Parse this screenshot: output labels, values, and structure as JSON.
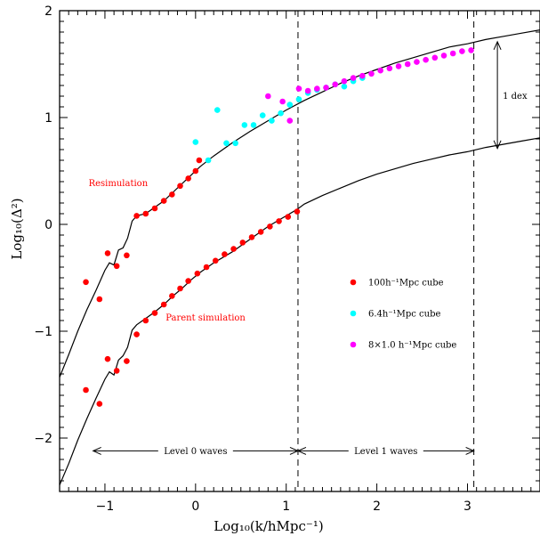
{
  "chart_data": {
    "type": "scatter",
    "title": "",
    "xlabel": "Log₁₀(k/hMpc⁻¹)",
    "ylabel": "Log₁₀(Δ²)",
    "xlim": [
      -1.5,
      3.8
    ],
    "ylim": [
      -2.5,
      2.0
    ],
    "xticks": [
      -1,
      0,
      1,
      2,
      3
    ],
    "xtick_labels": [
      "−1",
      "0",
      "1",
      "2",
      "3"
    ],
    "yticks": [
      -2,
      -1,
      0,
      1,
      2
    ],
    "ytick_labels": [
      "−2",
      "−1",
      "0",
      "1",
      "2"
    ],
    "grid": false,
    "legend": {
      "placement": "right-middle",
      "entries": [
        {
          "label": "100h⁻¹Mpc cube",
          "color": "#ff0000"
        },
        {
          "label": "6.4h⁻¹Mpc cube",
          "color": "#00ffff"
        },
        {
          "label": "8×1.0 h⁻¹Mpc cube",
          "color": "#ff00ff"
        }
      ]
    },
    "series": [
      {
        "name": "100h⁻¹Mpc cube",
        "color": "#ff0000",
        "points": [
          [
            -1.21,
            -0.54
          ],
          [
            -1.06,
            -0.7
          ],
          [
            -0.97,
            -0.27
          ],
          [
            -0.87,
            -0.39
          ],
          [
            -0.76,
            -0.29
          ],
          [
            -0.65,
            0.08
          ],
          [
            -0.55,
            0.1
          ],
          [
            -0.45,
            0.15
          ],
          [
            -0.35,
            0.22
          ],
          [
            -0.26,
            0.28
          ],
          [
            -0.17,
            0.36
          ],
          [
            -0.08,
            0.43
          ],
          [
            0.0,
            0.5
          ],
          [
            0.04,
            0.6
          ],
          [
            -1.21,
            -1.55
          ],
          [
            -1.06,
            -1.68
          ],
          [
            -0.97,
            -1.26
          ],
          [
            -0.87,
            -1.37
          ],
          [
            -0.76,
            -1.28
          ],
          [
            -0.65,
            -1.03
          ],
          [
            -0.55,
            -0.9
          ],
          [
            -0.45,
            -0.83
          ],
          [
            -0.35,
            -0.75
          ],
          [
            -0.26,
            -0.67
          ],
          [
            -0.17,
            -0.6
          ],
          [
            -0.08,
            -0.53
          ],
          [
            0.02,
            -0.46
          ],
          [
            0.12,
            -0.4
          ],
          [
            0.22,
            -0.34
          ],
          [
            0.32,
            -0.28
          ],
          [
            0.42,
            -0.23
          ],
          [
            0.52,
            -0.17
          ],
          [
            0.62,
            -0.12
          ],
          [
            0.72,
            -0.07
          ],
          [
            0.82,
            -0.02
          ],
          [
            0.92,
            0.03
          ],
          [
            1.02,
            0.07
          ],
          [
            1.12,
            0.12
          ]
        ]
      },
      {
        "name": "6.4h⁻¹Mpc cube",
        "color": "#00ffff",
        "points": [
          [
            0.0,
            0.77
          ],
          [
            0.14,
            0.6
          ],
          [
            0.24,
            1.07
          ],
          [
            0.34,
            0.76
          ],
          [
            0.44,
            0.76
          ],
          [
            0.54,
            0.93
          ],
          [
            0.64,
            0.93
          ],
          [
            0.74,
            1.02
          ],
          [
            0.84,
            0.97
          ],
          [
            0.94,
            1.04
          ],
          [
            1.04,
            1.12
          ],
          [
            1.14,
            1.17
          ],
          [
            1.24,
            1.23
          ],
          [
            1.34,
            1.26
          ],
          [
            1.44,
            1.28
          ],
          [
            1.54,
            1.31
          ],
          [
            1.64,
            1.29
          ],
          [
            1.74,
            1.34
          ],
          [
            1.84,
            1.37
          ]
        ]
      },
      {
        "name": "8×1.0 h⁻¹Mpc cube",
        "color": "#ff00ff",
        "points": [
          [
            0.8,
            1.2
          ],
          [
            0.96,
            1.15
          ],
          [
            1.04,
            0.97
          ],
          [
            1.14,
            1.27
          ],
          [
            1.24,
            1.25
          ],
          [
            1.34,
            1.27
          ],
          [
            1.44,
            1.28
          ],
          [
            1.54,
            1.31
          ],
          [
            1.64,
            1.34
          ],
          [
            1.74,
            1.37
          ],
          [
            1.84,
            1.39
          ],
          [
            1.94,
            1.41
          ],
          [
            2.04,
            1.44
          ],
          [
            2.14,
            1.46
          ],
          [
            2.24,
            1.48
          ],
          [
            2.34,
            1.5
          ],
          [
            2.44,
            1.52
          ],
          [
            2.54,
            1.54
          ],
          [
            2.64,
            1.56
          ],
          [
            2.74,
            1.58
          ],
          [
            2.84,
            1.6
          ],
          [
            2.94,
            1.62
          ],
          [
            3.04,
            1.63
          ]
        ]
      }
    ],
    "curves": [
      {
        "points": [
          [
            -1.5,
            -1.43
          ],
          [
            -1.4,
            -1.22
          ],
          [
            -1.3,
            -1.0
          ],
          [
            -1.2,
            -0.8
          ],
          [
            -1.1,
            -0.62
          ],
          [
            -1.0,
            -0.43
          ],
          [
            -0.95,
            -0.36
          ],
          [
            -0.9,
            -0.38
          ],
          [
            -0.85,
            -0.24
          ],
          [
            -0.8,
            -0.22
          ],
          [
            -0.75,
            -0.13
          ],
          [
            -0.7,
            0.03
          ],
          [
            -0.65,
            0.08
          ],
          [
            -0.55,
            0.1
          ],
          [
            -0.45,
            0.16
          ],
          [
            -0.35,
            0.22
          ],
          [
            -0.25,
            0.3
          ],
          [
            -0.15,
            0.38
          ],
          [
            -0.05,
            0.46
          ],
          [
            0.05,
            0.54
          ],
          [
            0.2,
            0.64
          ],
          [
            0.4,
            0.76
          ],
          [
            0.6,
            0.87
          ],
          [
            0.8,
            0.97
          ],
          [
            1.0,
            1.07
          ],
          [
            1.2,
            1.16
          ],
          [
            1.4,
            1.24
          ],
          [
            1.6,
            1.32
          ],
          [
            1.8,
            1.39
          ],
          [
            2.0,
            1.45
          ],
          [
            2.2,
            1.51
          ],
          [
            2.4,
            1.56
          ],
          [
            2.6,
            1.61
          ],
          [
            2.8,
            1.66
          ],
          [
            3.0,
            1.69
          ],
          [
            3.2,
            1.73
          ],
          [
            3.4,
            1.76
          ],
          [
            3.6,
            1.79
          ],
          [
            3.8,
            1.82
          ]
        ]
      },
      {
        "points": [
          [
            -1.5,
            -2.44
          ],
          [
            -1.4,
            -2.24
          ],
          [
            -1.3,
            -2.02
          ],
          [
            -1.2,
            -1.82
          ],
          [
            -1.1,
            -1.63
          ],
          [
            -1.0,
            -1.45
          ],
          [
            -0.95,
            -1.38
          ],
          [
            -0.9,
            -1.41
          ],
          [
            -0.85,
            -1.27
          ],
          [
            -0.8,
            -1.23
          ],
          [
            -0.75,
            -1.15
          ],
          [
            -0.7,
            -0.99
          ],
          [
            -0.65,
            -0.94
          ],
          [
            -0.55,
            -0.88
          ],
          [
            -0.45,
            -0.82
          ],
          [
            -0.35,
            -0.75
          ],
          [
            -0.25,
            -0.67
          ],
          [
            -0.15,
            -0.6
          ],
          [
            -0.05,
            -0.52
          ],
          [
            0.05,
            -0.45
          ],
          [
            0.2,
            -0.36
          ],
          [
            0.4,
            -0.26
          ],
          [
            0.6,
            -0.14
          ],
          [
            0.8,
            -0.02
          ],
          [
            1.0,
            0.08
          ],
          [
            1.12,
            0.14
          ],
          [
            1.2,
            0.19
          ],
          [
            1.4,
            0.27
          ],
          [
            1.6,
            0.34
          ],
          [
            1.8,
            0.41
          ],
          [
            2.0,
            0.47
          ],
          [
            2.2,
            0.52
          ],
          [
            2.4,
            0.57
          ],
          [
            2.6,
            0.61
          ],
          [
            2.8,
            0.65
          ],
          [
            3.0,
            0.68
          ],
          [
            3.2,
            0.72
          ],
          [
            3.4,
            0.75
          ],
          [
            3.6,
            0.78
          ],
          [
            3.8,
            0.81
          ]
        ]
      }
    ],
    "vlines": [
      1.13,
      3.07
    ],
    "annotations": {
      "resimulation": {
        "text": "Resimulation",
        "x": -1.18,
        "y": 0.36,
        "color": "#ff0000"
      },
      "parent": {
        "text": "Parent simulation",
        "x": -0.33,
        "y": -0.9,
        "color": "#ff0000"
      },
      "level0": {
        "text": "Level 0 waves",
        "x_from": -1.13,
        "x_to": 1.13,
        "y": -2.12,
        "color": "#000000"
      },
      "level1": {
        "text": "Level 1 waves",
        "x_from": 1.13,
        "x_to": 3.07,
        "y": -2.12,
        "color": "#000000"
      },
      "dex": {
        "text": "1 dex",
        "x": 3.33,
        "y_from": 0.71,
        "y_to": 1.71,
        "color": "#000000"
      }
    }
  }
}
